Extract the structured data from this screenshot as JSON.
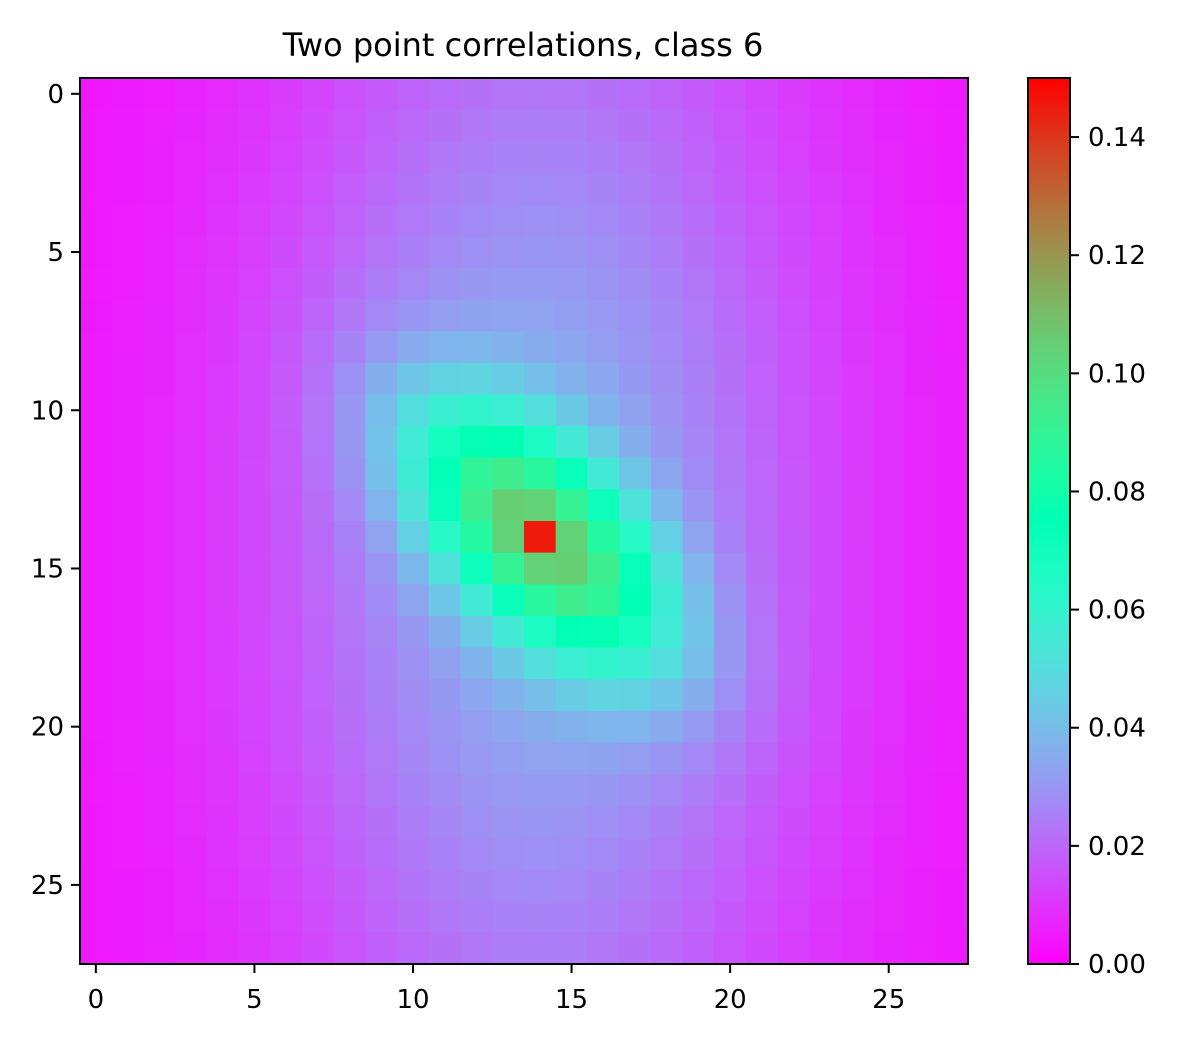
{
  "chart_data": {
    "type": "heatmap",
    "title": "Two point correlations, class 6",
    "rows": 28,
    "cols": 28,
    "center": [
      14,
      14
    ],
    "peak_value": 0.145,
    "colormap": "rainbow",
    "colorbar": {
      "vmin": 0.0,
      "vmax": 0.15,
      "ticks": [
        0.0,
        0.02,
        0.04,
        0.06,
        0.08,
        0.1,
        0.12,
        0.14
      ],
      "tick_labels": [
        "0.00",
        "0.02",
        "0.04",
        "0.06",
        "0.08",
        "0.10",
        "0.12",
        "0.14"
      ]
    },
    "x_ticks": [
      0,
      5,
      10,
      15,
      20,
      25
    ],
    "y_ticks": [
      0,
      5,
      10,
      15,
      20,
      25
    ],
    "x_tick_labels": [
      "0",
      "5",
      "10",
      "15",
      "20",
      "25"
    ],
    "y_tick_labels": [
      "0",
      "5",
      "10",
      "15",
      "20",
      "25"
    ]
  }
}
